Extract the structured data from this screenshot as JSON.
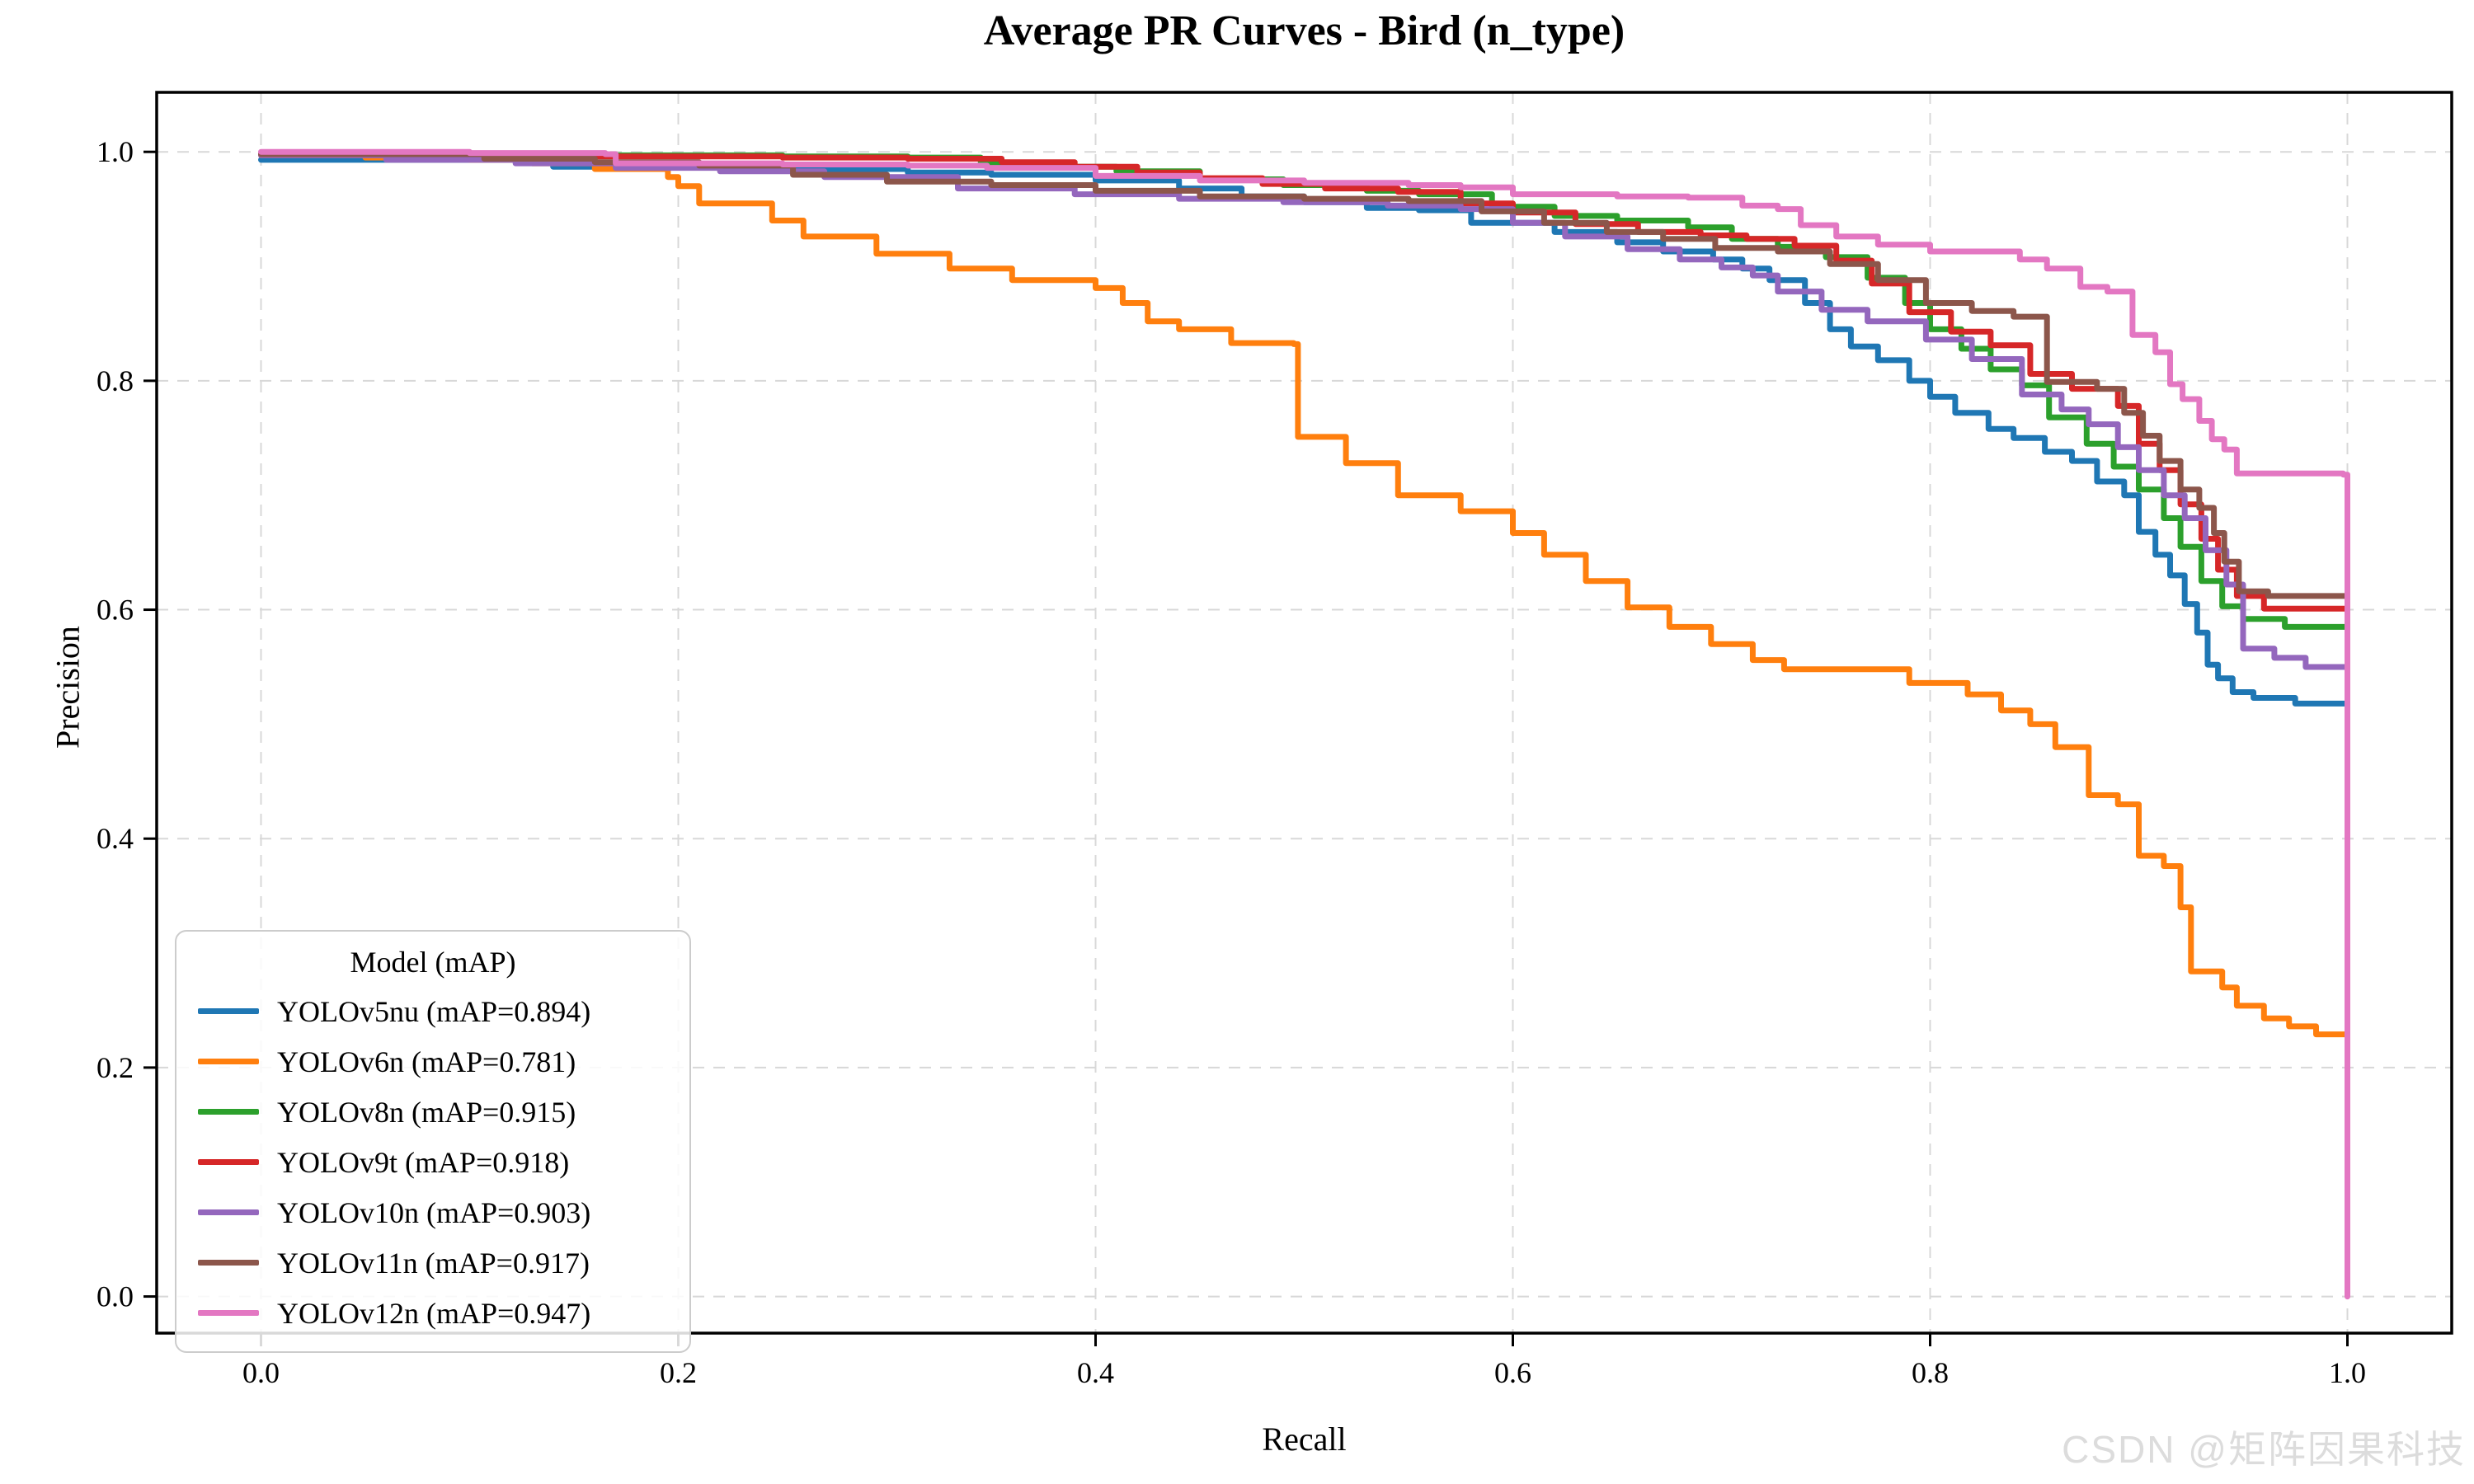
{
  "title": "Average PR Curves - Bird (n_type)",
  "xlabel": "Recall",
  "ylabel": "Precision",
  "watermark": "CSDN @矩阵因果科技",
  "legend": {
    "title": "Model (mAP)",
    "entries": [
      "YOLOv5nu (mAP=0.894)",
      "YOLOv6n (mAP=0.781)",
      "YOLOv8n (mAP=0.915)",
      "YOLOv9t (mAP=0.918)",
      "YOLOv10n (mAP=0.903)",
      "YOLOv11n (mAP=0.917)",
      "YOLOv12n (mAP=0.947)"
    ]
  },
  "chart_data": {
    "type": "line",
    "line_style": "step-post",
    "title": "Average PR Curves - Bird (n_type)",
    "xlabel": "Recall",
    "ylabel": "Precision",
    "xlim": [
      -0.05,
      1.05
    ],
    "ylim": [
      -0.032,
      1.052
    ],
    "x_ticks": {
      "values": [
        0.0,
        0.2,
        0.4,
        0.6,
        0.8,
        1.0
      ],
      "labels": [
        "0.0",
        "0.2",
        "0.4",
        "0.6",
        "0.8",
        "1.0"
      ]
    },
    "y_ticks": {
      "values": [
        0.0,
        0.2,
        0.4,
        0.6,
        0.8,
        1.0
      ],
      "labels": [
        "0.0",
        "0.2",
        "0.4",
        "0.6",
        "0.8",
        "1.0"
      ]
    },
    "grid": {
      "on": true,
      "color": "#d8d8d8",
      "dash": "14 11",
      "width": 2
    },
    "legend_position": "lower-left",
    "series": [
      {
        "name": "YOLOv5nu",
        "label": "YOLOv5nu (mAP=0.894)",
        "mAP": 0.894,
        "color": "#1f77b4",
        "points": [
          [
            0.0,
            0.993
          ],
          [
            0.14,
            0.987
          ],
          [
            0.27,
            0.985
          ],
          [
            0.31,
            0.982
          ],
          [
            0.35,
            0.98
          ],
          [
            0.4,
            0.975
          ],
          [
            0.44,
            0.968
          ],
          [
            0.47,
            0.961
          ],
          [
            0.5,
            0.956
          ],
          [
            0.53,
            0.951
          ],
          [
            0.555,
            0.949
          ],
          [
            0.58,
            0.938
          ],
          [
            0.62,
            0.93
          ],
          [
            0.65,
            0.921
          ],
          [
            0.672,
            0.913
          ],
          [
            0.696,
            0.906
          ],
          [
            0.71,
            0.898
          ],
          [
            0.723,
            0.888
          ],
          [
            0.74,
            0.868
          ],
          [
            0.752,
            0.845
          ],
          [
            0.762,
            0.83
          ],
          [
            0.775,
            0.818
          ],
          [
            0.79,
            0.8
          ],
          [
            0.8,
            0.786
          ],
          [
            0.812,
            0.772
          ],
          [
            0.828,
            0.758
          ],
          [
            0.84,
            0.75
          ],
          [
            0.855,
            0.738
          ],
          [
            0.868,
            0.73
          ],
          [
            0.88,
            0.712
          ],
          [
            0.893,
            0.7
          ],
          [
            0.9,
            0.668
          ],
          [
            0.908,
            0.648
          ],
          [
            0.915,
            0.63
          ],
          [
            0.922,
            0.605
          ],
          [
            0.928,
            0.58
          ],
          [
            0.933,
            0.552
          ],
          [
            0.938,
            0.54
          ],
          [
            0.945,
            0.528
          ],
          [
            0.955,
            0.523
          ],
          [
            0.975,
            0.518
          ],
          [
            1.0,
            0.515
          ]
        ]
      },
      {
        "name": "YOLOv6n",
        "label": "YOLOv6n (mAP=0.781)",
        "mAP": 0.781,
        "color": "#ff7f0e",
        "points": [
          [
            0.0,
            0.997
          ],
          [
            0.05,
            0.995
          ],
          [
            0.1,
            0.993
          ],
          [
            0.13,
            0.99
          ],
          [
            0.16,
            0.985
          ],
          [
            0.195,
            0.978
          ],
          [
            0.2,
            0.97
          ],
          [
            0.21,
            0.955
          ],
          [
            0.245,
            0.94
          ],
          [
            0.26,
            0.926
          ],
          [
            0.295,
            0.911
          ],
          [
            0.33,
            0.898
          ],
          [
            0.36,
            0.888
          ],
          [
            0.4,
            0.881
          ],
          [
            0.413,
            0.868
          ],
          [
            0.425,
            0.852
          ],
          [
            0.44,
            0.845
          ],
          [
            0.465,
            0.833
          ],
          [
            0.495,
            0.832
          ],
          [
            0.497,
            0.751
          ],
          [
            0.52,
            0.728
          ],
          [
            0.545,
            0.7
          ],
          [
            0.575,
            0.686
          ],
          [
            0.6,
            0.667
          ],
          [
            0.615,
            0.648
          ],
          [
            0.635,
            0.625
          ],
          [
            0.655,
            0.602
          ],
          [
            0.675,
            0.585
          ],
          [
            0.695,
            0.57
          ],
          [
            0.715,
            0.556
          ],
          [
            0.73,
            0.548
          ],
          [
            0.79,
            0.536
          ],
          [
            0.818,
            0.526
          ],
          [
            0.834,
            0.512
          ],
          [
            0.848,
            0.5
          ],
          [
            0.86,
            0.48
          ],
          [
            0.876,
            0.438
          ],
          [
            0.89,
            0.43
          ],
          [
            0.9,
            0.385
          ],
          [
            0.912,
            0.376
          ],
          [
            0.92,
            0.34
          ],
          [
            0.925,
            0.284
          ],
          [
            0.94,
            0.27
          ],
          [
            0.947,
            0.254
          ],
          [
            0.96,
            0.243
          ],
          [
            0.972,
            0.236
          ],
          [
            0.985,
            0.229
          ],
          [
            1.0,
            0.222
          ]
        ]
      },
      {
        "name": "YOLOv8n",
        "label": "YOLOv8n (mAP=0.915)",
        "mAP": 0.915,
        "color": "#2ca02c",
        "points": [
          [
            0.0,
            0.998
          ],
          [
            0.15,
            0.997
          ],
          [
            0.25,
            0.996
          ],
          [
            0.31,
            0.995
          ],
          [
            0.345,
            0.99
          ],
          [
            0.38,
            0.987
          ],
          [
            0.41,
            0.983
          ],
          [
            0.45,
            0.976
          ],
          [
            0.49,
            0.971
          ],
          [
            0.53,
            0.966
          ],
          [
            0.555,
            0.963
          ],
          [
            0.59,
            0.952
          ],
          [
            0.62,
            0.944
          ],
          [
            0.65,
            0.94
          ],
          [
            0.684,
            0.934
          ],
          [
            0.705,
            0.924
          ],
          [
            0.727,
            0.917
          ],
          [
            0.75,
            0.908
          ],
          [
            0.77,
            0.89
          ],
          [
            0.788,
            0.868
          ],
          [
            0.8,
            0.845
          ],
          [
            0.815,
            0.828
          ],
          [
            0.829,
            0.81
          ],
          [
            0.844,
            0.796
          ],
          [
            0.857,
            0.768
          ],
          [
            0.875,
            0.745
          ],
          [
            0.888,
            0.725
          ],
          [
            0.9,
            0.705
          ],
          [
            0.912,
            0.68
          ],
          [
            0.92,
            0.655
          ],
          [
            0.93,
            0.625
          ],
          [
            0.94,
            0.603
          ],
          [
            0.95,
            0.592
          ],
          [
            0.97,
            0.585
          ],
          [
            1.0,
            0.58
          ]
        ]
      },
      {
        "name": "YOLOv9t",
        "label": "YOLOv9t (mAP=0.918)",
        "mAP": 0.918,
        "color": "#d62728",
        "points": [
          [
            0.0,
            0.998
          ],
          [
            0.15,
            0.996
          ],
          [
            0.25,
            0.995
          ],
          [
            0.31,
            0.994
          ],
          [
            0.355,
            0.991
          ],
          [
            0.39,
            0.987
          ],
          [
            0.42,
            0.982
          ],
          [
            0.45,
            0.977
          ],
          [
            0.48,
            0.972
          ],
          [
            0.51,
            0.968
          ],
          [
            0.545,
            0.965
          ],
          [
            0.575,
            0.955
          ],
          [
            0.6,
            0.947
          ],
          [
            0.63,
            0.937
          ],
          [
            0.66,
            0.93
          ],
          [
            0.69,
            0.927
          ],
          [
            0.712,
            0.924
          ],
          [
            0.735,
            0.918
          ],
          [
            0.755,
            0.905
          ],
          [
            0.772,
            0.885
          ],
          [
            0.79,
            0.86
          ],
          [
            0.81,
            0.843
          ],
          [
            0.829,
            0.831
          ],
          [
            0.848,
            0.806
          ],
          [
            0.868,
            0.793
          ],
          [
            0.89,
            0.778
          ],
          [
            0.9,
            0.745
          ],
          [
            0.91,
            0.722
          ],
          [
            0.92,
            0.692
          ],
          [
            0.93,
            0.662
          ],
          [
            0.938,
            0.635
          ],
          [
            0.947,
            0.612
          ],
          [
            0.96,
            0.601
          ],
          [
            1.0,
            0.597
          ]
        ]
      },
      {
        "name": "YOLOv10n",
        "label": "YOLOv10n (mAP=0.903)",
        "mAP": 0.903,
        "color": "#9467bd",
        "points": [
          [
            0.0,
            0.997
          ],
          [
            0.06,
            0.993
          ],
          [
            0.122,
            0.99
          ],
          [
            0.17,
            0.986
          ],
          [
            0.22,
            0.983
          ],
          [
            0.27,
            0.978
          ],
          [
            0.334,
            0.968
          ],
          [
            0.39,
            0.963
          ],
          [
            0.44,
            0.959
          ],
          [
            0.49,
            0.956
          ],
          [
            0.54,
            0.953
          ],
          [
            0.575,
            0.95
          ],
          [
            0.6,
            0.938
          ],
          [
            0.625,
            0.926
          ],
          [
            0.655,
            0.915
          ],
          [
            0.68,
            0.906
          ],
          [
            0.7,
            0.899
          ],
          [
            0.715,
            0.892
          ],
          [
            0.727,
            0.878
          ],
          [
            0.748,
            0.862
          ],
          [
            0.77,
            0.852
          ],
          [
            0.798,
            0.836
          ],
          [
            0.82,
            0.819
          ],
          [
            0.844,
            0.788
          ],
          [
            0.863,
            0.775
          ],
          [
            0.876,
            0.762
          ],
          [
            0.89,
            0.742
          ],
          [
            0.9,
            0.722
          ],
          [
            0.912,
            0.7
          ],
          [
            0.922,
            0.68
          ],
          [
            0.932,
            0.652
          ],
          [
            0.942,
            0.622
          ],
          [
            0.95,
            0.566
          ],
          [
            0.965,
            0.558
          ],
          [
            0.98,
            0.55
          ],
          [
            1.0,
            0.541
          ]
        ]
      },
      {
        "name": "YOLOv11n",
        "label": "YOLOv11n (mAP=0.917)",
        "mAP": 0.917,
        "color": "#8c564b",
        "points": [
          [
            0.0,
            0.998
          ],
          [
            0.107,
            0.994
          ],
          [
            0.16,
            0.991
          ],
          [
            0.21,
            0.988
          ],
          [
            0.255,
            0.98
          ],
          [
            0.3,
            0.974
          ],
          [
            0.35,
            0.971
          ],
          [
            0.4,
            0.966
          ],
          [
            0.45,
            0.961
          ],
          [
            0.5,
            0.959
          ],
          [
            0.55,
            0.957
          ],
          [
            0.585,
            0.948
          ],
          [
            0.615,
            0.938
          ],
          [
            0.645,
            0.93
          ],
          [
            0.672,
            0.924
          ],
          [
            0.697,
            0.916
          ],
          [
            0.727,
            0.913
          ],
          [
            0.752,
            0.902
          ],
          [
            0.775,
            0.888
          ],
          [
            0.798,
            0.868
          ],
          [
            0.82,
            0.861
          ],
          [
            0.84,
            0.856
          ],
          [
            0.856,
            0.799
          ],
          [
            0.88,
            0.793
          ],
          [
            0.893,
            0.772
          ],
          [
            0.902,
            0.752
          ],
          [
            0.91,
            0.73
          ],
          [
            0.92,
            0.705
          ],
          [
            0.929,
            0.689
          ],
          [
            0.936,
            0.667
          ],
          [
            0.941,
            0.642
          ],
          [
            0.948,
            0.616
          ],
          [
            0.962,
            0.612
          ],
          [
            1.0,
            0.609
          ]
        ]
      },
      {
        "name": "YOLOv12n",
        "label": "YOLOv12n (mAP=0.947)",
        "mAP": 0.947,
        "color": "#e377c2",
        "points": [
          [
            0.0,
            1.0
          ],
          [
            0.1,
            0.999
          ],
          [
            0.165,
            0.998
          ],
          [
            0.17,
            0.99
          ],
          [
            0.25,
            0.989
          ],
          [
            0.31,
            0.988
          ],
          [
            0.348,
            0.986
          ],
          [
            0.4,
            0.979
          ],
          [
            0.45,
            0.975
          ],
          [
            0.5,
            0.973
          ],
          [
            0.55,
            0.971
          ],
          [
            0.575,
            0.969
          ],
          [
            0.6,
            0.963
          ],
          [
            0.65,
            0.961
          ],
          [
            0.684,
            0.96
          ],
          [
            0.71,
            0.953
          ],
          [
            0.727,
            0.95
          ],
          [
            0.738,
            0.936
          ],
          [
            0.755,
            0.926
          ],
          [
            0.775,
            0.919
          ],
          [
            0.8,
            0.913
          ],
          [
            0.843,
            0.906
          ],
          [
            0.856,
            0.898
          ],
          [
            0.872,
            0.882
          ],
          [
            0.885,
            0.878
          ],
          [
            0.897,
            0.84
          ],
          [
            0.908,
            0.825
          ],
          [
            0.915,
            0.797
          ],
          [
            0.921,
            0.784
          ],
          [
            0.929,
            0.765
          ],
          [
            0.935,
            0.749
          ],
          [
            0.941,
            0.74
          ],
          [
            0.947,
            0.719
          ],
          [
            0.998,
            0.718
          ],
          [
            1.0,
            0.0
          ]
        ]
      }
    ]
  },
  "style": {
    "background": "#ffffff",
    "spine_color": "#000000",
    "tick_label_size": 36,
    "curve_width": 7
  }
}
